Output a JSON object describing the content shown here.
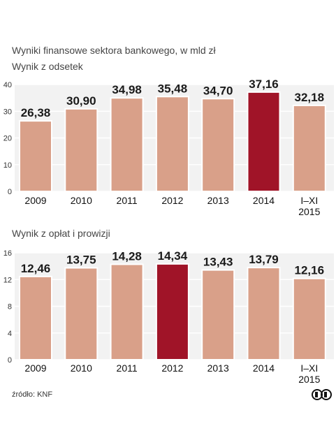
{
  "header": {
    "title": "Wyniki finansowe sektora bankowego, w mld zł"
  },
  "chart_data": [
    {
      "type": "bar",
      "subtitle": "Wynik z odsetek",
      "categories": [
        "2009",
        "2010",
        "2011",
        "2012",
        "2013",
        "2014",
        [
          "I–XI",
          "2015"
        ]
      ],
      "values": [
        26.38,
        30.9,
        34.98,
        35.48,
        34.7,
        37.16,
        32.18
      ],
      "value_labels": [
        "26,38",
        "30,90",
        "34,98",
        "35,48",
        "34,70",
        "37,16",
        "32,18"
      ],
      "highlight_index": 5,
      "yticks": [
        0,
        10,
        20,
        30,
        40
      ],
      "ylim": [
        0,
        40
      ],
      "grid": true,
      "colors": {
        "bar": "#d9a089",
        "highlight": "#a01428",
        "background": "#f2f2f2",
        "grid": "#ffffff"
      }
    },
    {
      "type": "bar",
      "subtitle": "Wynik z opłat i prowizji",
      "categories": [
        "2009",
        "2010",
        "2011",
        "2012",
        "2013",
        "2014",
        [
          "I–XI",
          "2015"
        ]
      ],
      "values": [
        12.46,
        13.75,
        14.28,
        14.34,
        13.43,
        13.79,
        12.16
      ],
      "value_labels": [
        "12,46",
        "13,75",
        "14,28",
        "14,34",
        "13,43",
        "13,79",
        "12,16"
      ],
      "highlight_index": 3,
      "yticks": [
        0,
        4,
        8,
        12,
        16
      ],
      "ylim": [
        0,
        16
      ],
      "grid": true,
      "colors": {
        "bar": "#d9a089",
        "highlight": "#a01428",
        "background": "#f2f2f2",
        "grid": "#ffffff"
      }
    }
  ],
  "footer": {
    "source": "źródło: KNF",
    "logo_text": "PAP",
    "logo_icon": "pap-logo-icon"
  }
}
